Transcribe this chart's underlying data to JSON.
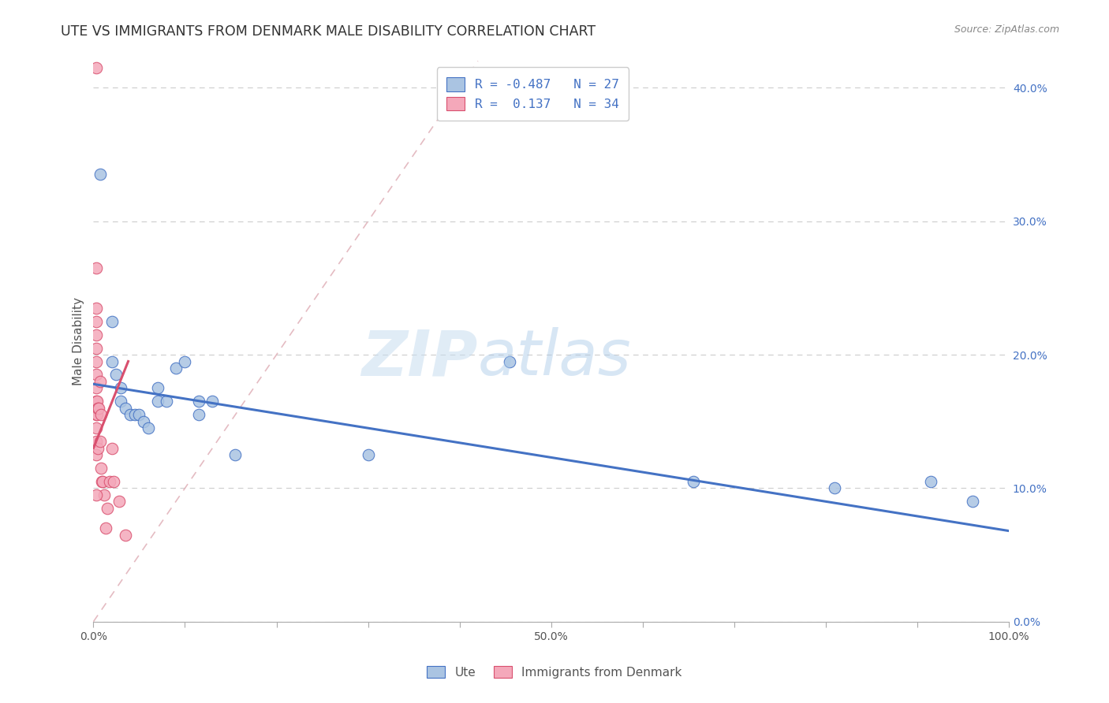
{
  "title": "UTE VS IMMIGRANTS FROM DENMARK MALE DISABILITY CORRELATION CHART",
  "source": "Source: ZipAtlas.com",
  "ylabel": "Male Disability",
  "xlim": [
    0.0,
    1.0
  ],
  "ylim": [
    0.0,
    0.42
  ],
  "yticks": [
    0.0,
    0.1,
    0.2,
    0.3,
    0.4
  ],
  "xticks": [
    0.0,
    0.1,
    0.2,
    0.3,
    0.4,
    0.5,
    0.6,
    0.7,
    0.8,
    0.9,
    1.0
  ],
  "xtick_labels": [
    "0.0%",
    "",
    "",
    "",
    "",
    "50.0%",
    "",
    "",
    "",
    "",
    "100.0%"
  ],
  "ytick_labels_right": [
    "0.0%",
    "10.0%",
    "20.0%",
    "30.0%",
    "40.0%"
  ],
  "legend_r_ute": "-0.487",
  "legend_n_ute": "27",
  "legend_r_denmark": " 0.137",
  "legend_n_denmark": "34",
  "ute_color": "#aac4e2",
  "denmark_color": "#f4a8ba",
  "ute_line_color": "#4472c4",
  "denmark_line_color": "#d94f6e",
  "diagonal_color": "#e0b0b8",
  "watermark_zip": "ZIP",
  "watermark_atlas": "atlas",
  "ute_x": [
    0.007,
    0.02,
    0.02,
    0.025,
    0.03,
    0.03,
    0.035,
    0.04,
    0.045,
    0.05,
    0.055,
    0.06,
    0.07,
    0.07,
    0.08,
    0.09,
    0.1,
    0.115,
    0.115,
    0.13,
    0.155,
    0.3,
    0.455,
    0.655,
    0.81,
    0.915,
    0.96
  ],
  "ute_y": [
    0.335,
    0.225,
    0.195,
    0.185,
    0.175,
    0.165,
    0.16,
    0.155,
    0.155,
    0.155,
    0.15,
    0.145,
    0.175,
    0.165,
    0.165,
    0.19,
    0.195,
    0.165,
    0.155,
    0.165,
    0.125,
    0.125,
    0.195,
    0.105,
    0.1,
    0.105,
    0.09
  ],
  "denmark_x": [
    0.003,
    0.003,
    0.003,
    0.003,
    0.003,
    0.003,
    0.003,
    0.003,
    0.003,
    0.003,
    0.003,
    0.003,
    0.003,
    0.003,
    0.004,
    0.004,
    0.005,
    0.005,
    0.006,
    0.007,
    0.007,
    0.008,
    0.008,
    0.009,
    0.01,
    0.012,
    0.013,
    0.015,
    0.018,
    0.02,
    0.022,
    0.028,
    0.035,
    0.003
  ],
  "denmark_y": [
    0.415,
    0.265,
    0.235,
    0.225,
    0.215,
    0.205,
    0.195,
    0.185,
    0.175,
    0.165,
    0.155,
    0.145,
    0.135,
    0.125,
    0.165,
    0.155,
    0.16,
    0.13,
    0.16,
    0.18,
    0.135,
    0.155,
    0.115,
    0.105,
    0.105,
    0.095,
    0.07,
    0.085,
    0.105,
    0.13,
    0.105,
    0.09,
    0.065,
    0.095
  ]
}
